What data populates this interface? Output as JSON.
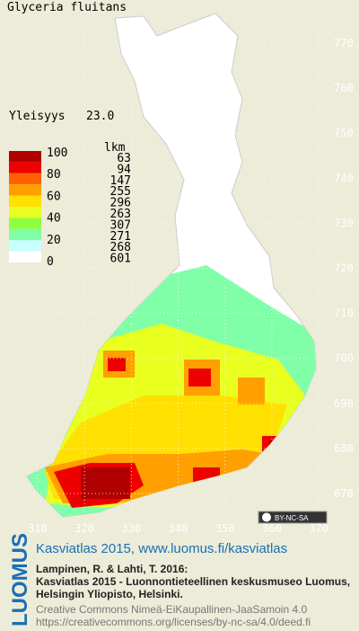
{
  "map": {
    "title": "Glyceria fluitans",
    "frequency_label": "Yleisyys",
    "frequency_value": "23.0",
    "legend": {
      "scale_labels": [
        "100",
        "80",
        "60",
        "40",
        "20",
        "0"
      ],
      "count_header": "lkm",
      "classes": [
        {
          "color": "#b00000",
          "count": "63"
        },
        {
          "color": "#ee0000",
          "count": "94"
        },
        {
          "color": "#ff6000",
          "count": "147"
        },
        {
          "color": "#ffa000",
          "count": "255"
        },
        {
          "color": "#ffe000",
          "count": "296"
        },
        {
          "color": "#e8ff20",
          "count": "263"
        },
        {
          "color": "#90ff40",
          "count": "307"
        },
        {
          "color": "#80ffa8",
          "count": "271"
        },
        {
          "color": "#c8ffff",
          "count": "268"
        },
        {
          "color": "#ffffff",
          "count": "601"
        }
      ]
    },
    "grid": {
      "x_labels": [
        "310",
        "320",
        "330",
        "340",
        "350",
        "360",
        "370"
      ],
      "y_labels": [
        "770",
        "760",
        "750",
        "740",
        "730",
        "720",
        "710",
        "700",
        "690",
        "680",
        "670"
      ]
    },
    "license_badge": "BY-NC-SA"
  },
  "footer": {
    "logo": "LUOMUS",
    "headline": "Kasviatlas 2015, www.luomus.fi/kasviatlas",
    "citation": [
      "Lampinen, R. & Lahti, T. 2016:",
      "Kasviatlas 2015 - Luonnontieteellinen keskusmuseo Luomus,",
      "Helsingin Yliopisto, Helsinki."
    ],
    "license": [
      "Creative Commons Nimeä-EiKaupallinen-JaaSamoin 4.0",
      "https://creativecommons.org/licenses/by-nc-sa/4.0/deed.fi"
    ]
  }
}
